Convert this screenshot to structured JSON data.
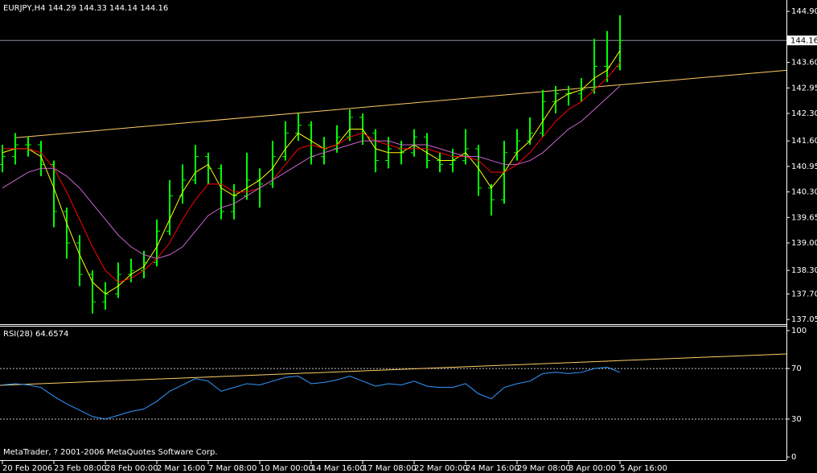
{
  "chart_data": [
    {
      "type": "ohlc",
      "title": "EURJPY,H4  144.29 144.33 144.14 144.16",
      "footer": "MetaTrader, ? 2001-2006 MetaQuotes Software Corp.",
      "categories": [
        "20 Feb 2006",
        null,
        null,
        null,
        "23 Feb 08:00",
        null,
        null,
        null,
        "28 Feb 00:00",
        null,
        null,
        null,
        "2 Mar 16:00",
        null,
        null,
        null,
        "7 Mar 08:00",
        null,
        null,
        null,
        "10 Mar 00:00",
        null,
        null,
        null,
        "14 Mar 16:00",
        null,
        null,
        null,
        "17 Mar 08:00",
        null,
        null,
        null,
        "22 Mar 00:00",
        null,
        null,
        null,
        "24 Mar 16:00",
        null,
        null,
        null,
        "29 Mar 08:00",
        null,
        null,
        null,
        "3 Apr 00:00",
        null,
        null,
        null,
        "5 Apr 16:00"
      ],
      "open": [
        141.0,
        141.2,
        141.5,
        141.5,
        141.0,
        139.8,
        139.0,
        138.2,
        137.5,
        137.7,
        138.2,
        138.3,
        138.5,
        139.3,
        140.2,
        140.6,
        141.2,
        140.9,
        139.8,
        140.2,
        140.6,
        140.5,
        141.2,
        141.8,
        142.0,
        141.2,
        141.4,
        141.7,
        142.2,
        141.8,
        141.1,
        141.4,
        141.3,
        141.7,
        141.1,
        141.0,
        141.1,
        141.4,
        140.4,
        140.1,
        141.3,
        141.6,
        141.8,
        142.6,
        142.8,
        142.8,
        142.9,
        143.5,
        143.5
      ],
      "high": [
        141.5,
        141.8,
        141.7,
        141.6,
        141.1,
        139.9,
        139.2,
        138.3,
        138.0,
        138.5,
        138.6,
        138.8,
        139.6,
        140.6,
        141.0,
        141.5,
        141.3,
        141.0,
        140.5,
        141.3,
        140.9,
        141.6,
        142.1,
        142.3,
        142.1,
        141.7,
        142.0,
        142.4,
        142.3,
        141.9,
        141.7,
        141.6,
        141.9,
        141.8,
        141.3,
        141.4,
        141.9,
        141.5,
        140.5,
        141.6,
        141.9,
        142.2,
        142.9,
        143.0,
        143.0,
        143.2,
        144.2,
        144.4,
        144.8
      ],
      "low": [
        140.8,
        141.0,
        141.2,
        140.7,
        139.4,
        138.6,
        137.9,
        137.2,
        137.3,
        137.6,
        138.0,
        138.1,
        138.4,
        139.2,
        140.0,
        140.5,
        140.5,
        139.6,
        139.6,
        140.1,
        139.9,
        140.4,
        141.1,
        141.6,
        141.0,
        141.0,
        141.3,
        141.6,
        141.5,
        140.8,
        140.9,
        141.0,
        141.2,
        140.9,
        140.8,
        140.8,
        141.0,
        140.2,
        139.7,
        140.0,
        141.1,
        141.5,
        141.7,
        142.3,
        142.5,
        142.6,
        142.8,
        143.1,
        143.4
      ],
      "close": [
        141.2,
        141.5,
        141.5,
        141.0,
        139.8,
        139.0,
        138.2,
        137.5,
        137.7,
        138.2,
        138.3,
        138.5,
        139.3,
        140.2,
        140.6,
        141.2,
        140.9,
        139.8,
        140.2,
        140.6,
        140.5,
        141.2,
        141.8,
        142.0,
        141.2,
        141.4,
        141.7,
        142.2,
        141.8,
        141.1,
        141.4,
        141.3,
        141.7,
        141.1,
        141.0,
        141.1,
        141.4,
        140.4,
        140.1,
        141.3,
        141.6,
        141.8,
        142.6,
        142.8,
        142.8,
        142.9,
        143.5,
        143.5,
        144.16
      ],
      "color": "#00ff00",
      "series": [
        {
          "color": "#ffff00",
          "values": [
            141.3,
            141.4,
            141.4,
            141.2,
            140.4,
            139.5,
            138.7,
            138.0,
            137.7,
            137.9,
            138.2,
            138.4,
            138.9,
            139.6,
            140.3,
            140.8,
            141.0,
            140.4,
            140.2,
            140.4,
            140.6,
            140.9,
            141.4,
            141.8,
            141.6,
            141.4,
            141.5,
            141.9,
            141.9,
            141.4,
            141.3,
            141.3,
            141.5,
            141.3,
            141.1,
            141.1,
            141.3,
            140.9,
            140.4,
            140.8,
            141.3,
            141.6,
            142.1,
            142.6,
            142.8,
            142.9,
            143.2,
            143.4,
            143.9
          ]
        },
        {
          "color": "#ff0000",
          "values": [
            141.4,
            141.4,
            141.4,
            141.3,
            140.9,
            140.3,
            139.6,
            138.9,
            138.3,
            138.0,
            138.1,
            138.3,
            138.6,
            139.0,
            139.6,
            140.1,
            140.5,
            140.5,
            140.3,
            140.3,
            140.4,
            140.6,
            141.0,
            141.4,
            141.5,
            141.4,
            141.5,
            141.7,
            141.8,
            141.6,
            141.5,
            141.4,
            141.4,
            141.4,
            141.3,
            141.2,
            141.2,
            141.1,
            140.8,
            140.8,
            141.0,
            141.3,
            141.7,
            142.1,
            142.4,
            142.6,
            142.9,
            143.2,
            143.6
          ]
        },
        {
          "color": "#cc66cc",
          "values": [
            140.4,
            140.6,
            140.8,
            140.9,
            140.9,
            140.7,
            140.4,
            140.0,
            139.6,
            139.2,
            138.9,
            138.7,
            138.6,
            138.7,
            138.9,
            139.3,
            139.7,
            139.9,
            140.0,
            140.2,
            140.4,
            140.6,
            140.8,
            141.0,
            141.2,
            141.3,
            141.4,
            141.5,
            141.6,
            141.6,
            141.6,
            141.5,
            141.5,
            141.5,
            141.4,
            141.3,
            141.2,
            141.2,
            141.1,
            141.0,
            141.0,
            141.1,
            141.3,
            141.6,
            141.9,
            142.1,
            142.4,
            142.7,
            143.0
          ]
        }
      ],
      "trendline": {
        "color": "#ffcc66",
        "values": [
          141.68,
          143.4
        ]
      },
      "last_price": 144.16,
      "ylim": [
        136.93,
        145.19
      ],
      "yticks": [
        {
          "value": 144.9,
          "label": "144.90"
        },
        {
          "value": 143.6,
          "label": "143.60"
        },
        {
          "value": 142.95,
          "label": "142.95"
        },
        {
          "value": 142.3,
          "label": "142.30"
        },
        {
          "value": 141.6,
          "label": "141.60"
        },
        {
          "value": 140.95,
          "label": "140.95"
        },
        {
          "value": 140.3,
          "label": "140.30"
        },
        {
          "value": 139.65,
          "label": "139.65"
        },
        {
          "value": 139,
          "label": "139.00"
        },
        {
          "value": 138.3,
          "label": "138.30"
        },
        {
          "value": 137.7,
          "label": "137.70"
        },
        {
          "value": 137.05,
          "label": "137.05"
        }
      ]
    },
    {
      "type": "line",
      "title": "RSI(28) 64.6574",
      "series": [
        {
          "color": "#3399ff",
          "values": [
            57,
            58,
            57,
            55,
            48,
            42,
            37,
            32,
            30,
            33,
            36,
            38,
            44,
            52,
            57,
            62,
            60,
            52,
            55,
            58,
            57,
            60,
            63,
            64,
            58,
            59,
            61,
            64,
            60,
            56,
            58,
            57,
            60,
            56,
            55,
            55,
            58,
            50,
            46,
            55,
            58,
            60,
            66,
            67,
            66,
            67,
            70,
            71,
            67
          ]
        }
      ],
      "trendline": {
        "color": "#ffcc66",
        "values": [
          56.7,
          81.5
        ]
      },
      "levels": [
        70,
        30
      ],
      "ylim": [
        -2.5,
        103.8
      ],
      "yticks": [
        100,
        70,
        30,
        0
      ]
    }
  ]
}
